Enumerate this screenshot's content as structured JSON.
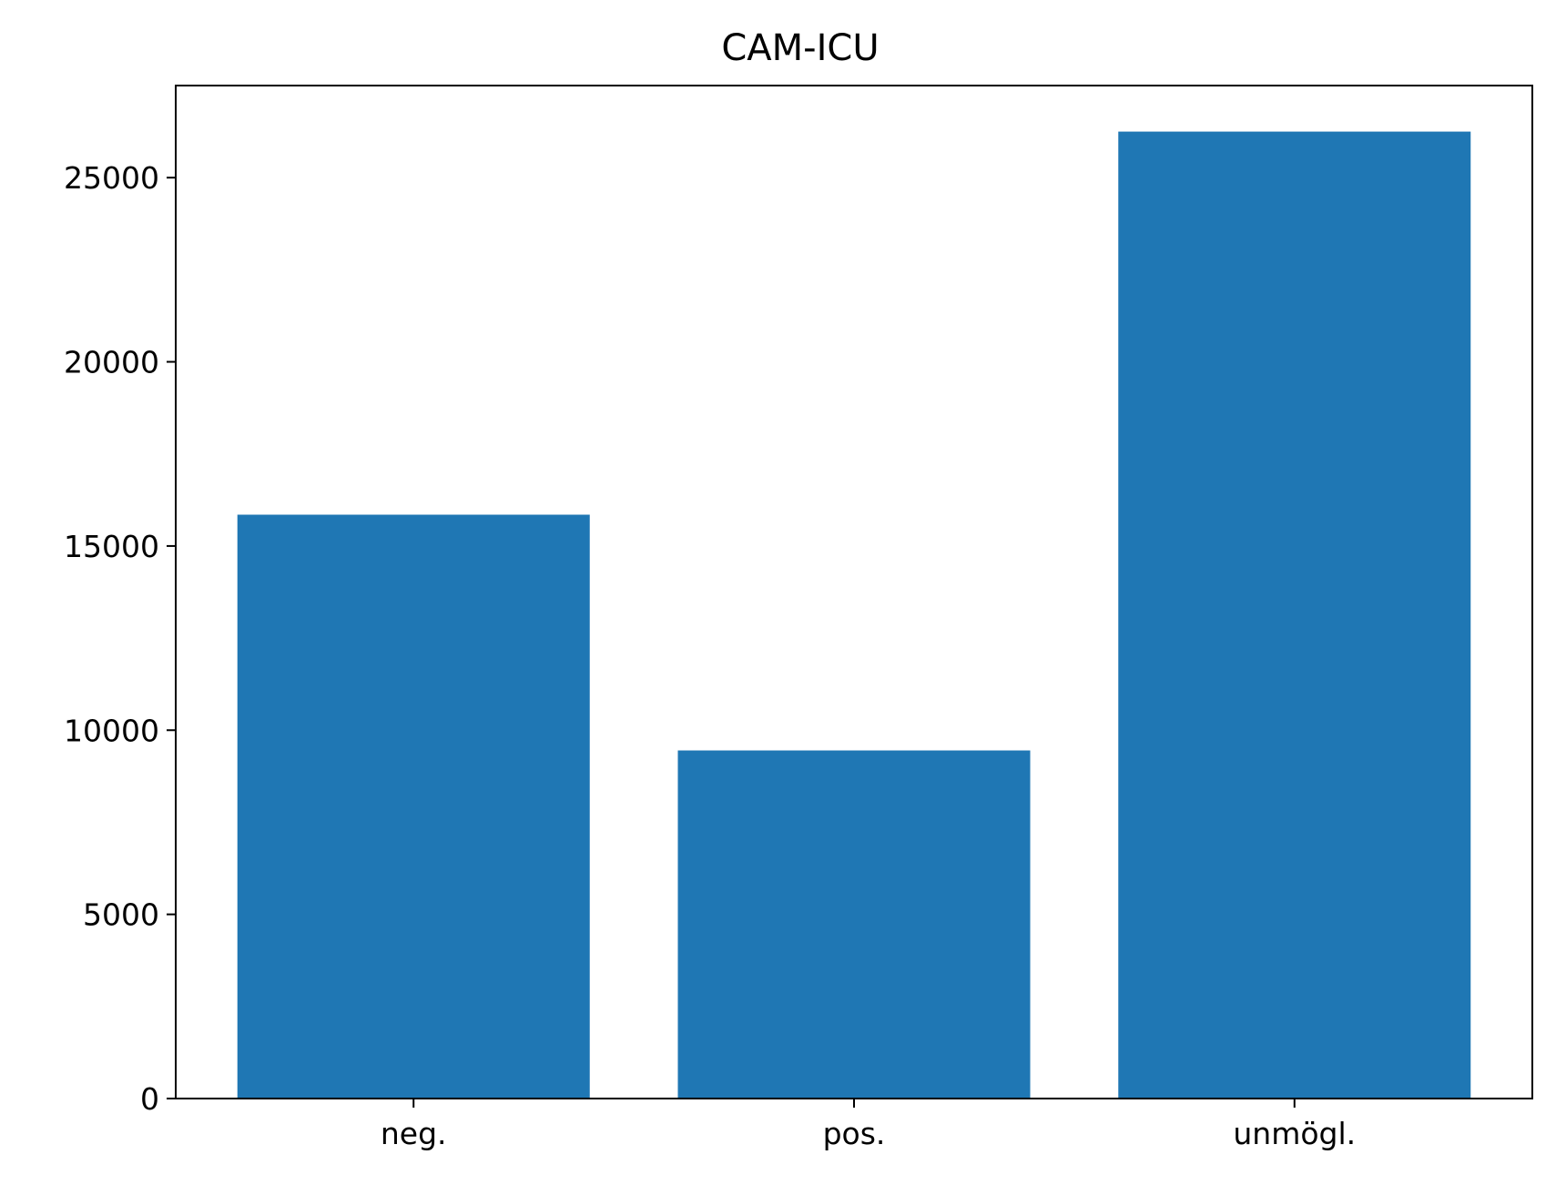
{
  "chart_data": {
    "type": "bar",
    "title": "CAM-ICU",
    "xlabel": "",
    "ylabel": "",
    "categories": [
      "neg.",
      "pos.",
      "unmögl."
    ],
    "values": [
      15850,
      9450,
      26250
    ],
    "ylim": [
      0,
      27500
    ],
    "yticks": [
      0,
      5000,
      10000,
      15000,
      20000,
      25000
    ],
    "ytick_labels": [
      "0",
      "5000",
      "10000",
      "15000",
      "20000",
      "25000"
    ],
    "grid": false,
    "bar_color": "#1f77b4"
  }
}
